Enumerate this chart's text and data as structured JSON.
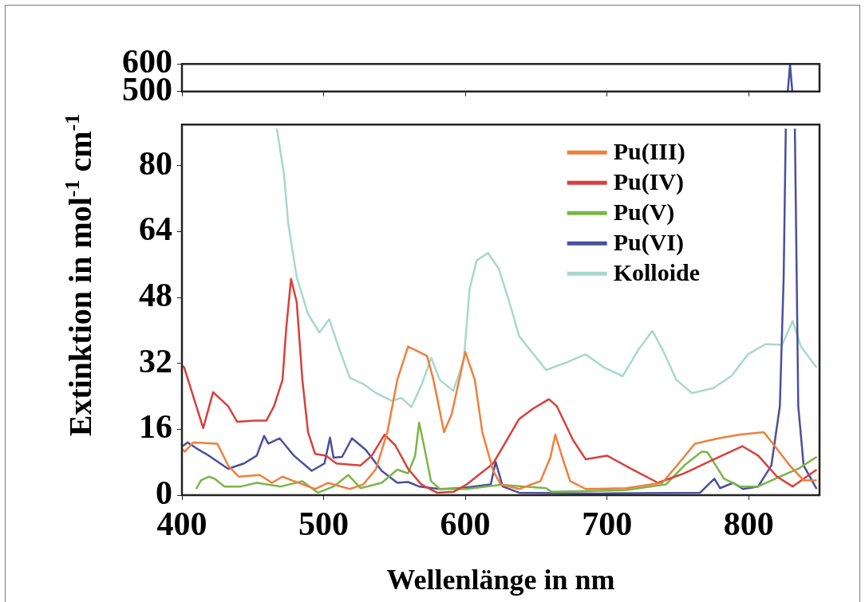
{
  "chart_data": [
    {
      "type": "line",
      "xlim": [
        400,
        850
      ],
      "xticks": [
        400,
        500,
        600,
        700,
        800
      ],
      "ylim": [
        500,
        600
      ],
      "yticks": [
        500,
        600
      ],
      "tick_labels": "y",
      "grid": false,
      "legend": false,
      "marker": "none",
      "series": [
        {
          "color": "#4a4f9e",
          "x": [
            827.6,
            829.2,
            830.8
          ],
          "values": [
            500,
            598,
            500
          ]
        }
      ]
    },
    {
      "type": "line",
      "xlabel": "Wellenlänge in nm",
      "ylabel": "Extinktion in mol$^{-1}$ cm$^{-1}$",
      "xlim": [
        400,
        850
      ],
      "xticks": [
        400,
        500,
        600,
        700,
        800
      ],
      "ylim": [
        0,
        90
      ],
      "yticks": [
        0,
        16,
        32,
        48,
        64,
        80
      ],
      "grid": false,
      "legend": "top right",
      "marker": "none",
      "series": [
        {
          "name": "Pu(III)",
          "color": "#f07f3c",
          "x": [
            400.5,
            402,
            408,
            425,
            432.6,
            440,
            455,
            463.5,
            471,
            479,
            494,
            503,
            518.5,
            528,
            537,
            545,
            552,
            559.6,
            573,
            577.5,
            585,
            590.4,
            600,
            606.7,
            612,
            619.7,
            625,
            638,
            653,
            660,
            663.5,
            668.5,
            674,
            685,
            713.5,
            739,
            750.6,
            762,
            778.6,
            794,
            810.7,
            818,
            829,
            838.8,
            848
          ],
          "values": [
            11.1,
            10.6,
            12.8,
            12.5,
            7.2,
            4.5,
            4.9,
            3,
            4.5,
            3.4,
            1.5,
            3,
            1.5,
            2.6,
            6.4,
            15.3,
            28,
            36.1,
            33.8,
            28,
            15.3,
            19.7,
            34.8,
            28,
            15.3,
            5.9,
            2.6,
            1.5,
            3.4,
            9.1,
            14.7,
            9.1,
            3.4,
            1.5,
            1.7,
            3,
            7.7,
            12.5,
            13.8,
            14.7,
            15.3,
            12.1,
            7.2,
            3.6,
            3.6
          ]
        },
        {
          "name": "Pu(IV)",
          "color": "#d9403a",
          "x": [
            400.5,
            401.6,
            415,
            422,
            432.6,
            439,
            451,
            459.6,
            465,
            471,
            473.6,
            477,
            481,
            485,
            489,
            494,
            501.7,
            509,
            526,
            534,
            543,
            550.6,
            559.6,
            569,
            580,
            591.6,
            601,
            619.7,
            638,
            647.8,
            659,
            664.6,
            676,
            685,
            700,
            717,
            736,
            754.5,
            773,
            795.5,
            806.7,
            820,
            831,
            848
          ],
          "values": [
            31.4,
            31,
            16.3,
            25,
            21.6,
            17.8,
            18.1,
            18.1,
            21.6,
            28,
            40.5,
            52.5,
            46.9,
            28,
            15.3,
            10,
            9.6,
            7.7,
            7.2,
            9.6,
            14.7,
            12.1,
            6.4,
            2.6,
            0.6,
            0.8,
            2.6,
            7.7,
            18.5,
            21,
            23.3,
            21.6,
            13.4,
            8.7,
            9.6,
            6.4,
            3,
            5.3,
            8.3,
            11.9,
            9.6,
            4.5,
            2.1,
            6.2
          ]
        },
        {
          "name": "Pu(V)",
          "color": "#7ab648",
          "x": [
            410,
            413.5,
            419,
            423,
            430,
            441.6,
            452.8,
            469.7,
            485,
            496,
            507,
            517.4,
            526,
            541,
            552,
            559.6,
            564.6,
            567.4,
            570.8,
            575.8,
            582,
            601,
            625,
            657,
            661,
            713,
            741.6,
            754.5,
            767,
            771,
            782.6,
            794,
            806.7,
            822,
            835,
            848
          ],
          "values": [
            1.5,
            3.6,
            4.5,
            4,
            2.1,
            2.1,
            3,
            2.1,
            3.4,
            0.6,
            2.1,
            4.9,
            1.7,
            3,
            6.2,
            5.3,
            9.6,
            17.6,
            12.1,
            3.4,
            1.5,
            1.5,
            2.5,
            1.7,
            0.8,
            1.2,
            2.6,
            7.2,
            10.6,
            10.4,
            4,
            2.1,
            2.1,
            4.5,
            6.4,
            9.3
          ]
        },
        {
          "name": "Pu(VI)",
          "color": "#4a4f9e",
          "x": [
            400.5,
            404,
            412,
            419,
            432.6,
            443.8,
            452.8,
            458,
            461,
            469,
            479,
            491.6,
            500.6,
            504.5,
            507,
            513,
            520,
            529.8,
            541,
            552,
            559.6,
            567.4,
            582,
            597,
            618,
            621.4,
            626.4,
            638,
            694,
            765.7,
            775.8,
            779.8,
            789,
            796,
            806.7,
            816,
            822,
            824.7,
            826.2,
            829.4,
            832.6,
            834,
            835,
            838.8,
            848
          ],
          "values": [
            11.9,
            12.8,
            11,
            9.6,
            6.4,
            7.7,
            9.6,
            14.4,
            12.5,
            13.8,
            9.6,
            5.9,
            7.7,
            14,
            9.1,
            9.3,
            13.8,
            11,
            5.9,
            3,
            3.2,
            2.1,
            1.5,
            1.7,
            2.6,
            8.1,
            2.1,
            0.6,
            0.4,
            0.6,
            4,
            1.7,
            3,
            1.5,
            2.1,
            7.2,
            21.6,
            53,
            89,
            null,
            89,
            50,
            21.6,
            7.2,
            1.5
          ]
        },
        {
          "name": "Kolloide",
          "color": "#a8d8cc",
          "x": [
            467,
            472,
            475,
            481,
            489,
            497,
            504,
            511,
            518.5,
            528,
            537,
            548,
            555,
            562,
            569,
            576,
            582,
            591.5,
            599,
            603,
            608,
            616,
            623.6,
            631,
            638,
            657,
            672,
            685,
            698,
            711,
            722.5,
            732,
            739,
            749,
            760,
            775,
            788,
            799.5,
            812,
            823.6,
            831,
            837,
            848
          ],
          "values": [
            89,
            78,
            66,
            53,
            44,
            39.5,
            42.7,
            35.5,
            28.5,
            27,
            24.8,
            22.9,
            23.6,
            21.4,
            26.7,
            33.3,
            28,
            25.3,
            33,
            50,
            57,
            58.8,
            55,
            47,
            38.6,
            30.4,
            32.3,
            34.2,
            31,
            28.9,
            35.5,
            39.9,
            35.5,
            28,
            24.8,
            26,
            29,
            34.2,
            36.7,
            36.5,
            42.3,
            36,
            31
          ]
        }
      ]
    }
  ]
}
